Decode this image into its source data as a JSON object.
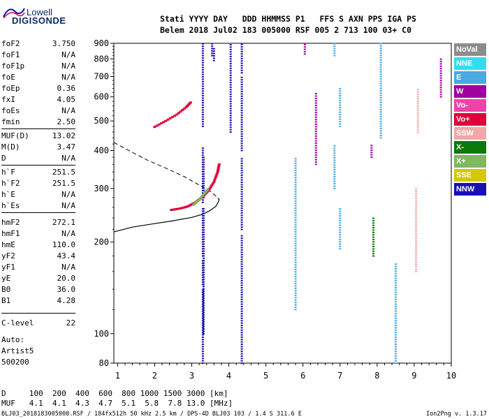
{
  "logo": {
    "line1": "Lowell",
    "line2": "DIGISONDE"
  },
  "header": {
    "line1": "Stati YYYY DAY   DDD HHMMSS P1   FFS S AXN PPS IGA PS",
    "line2": "Belem 2018 Jul02 183 005000 RSF 005 2 713 100 03+ C0"
  },
  "params": [
    {
      "name": "foF2",
      "value": "3.750"
    },
    {
      "name": "foF1",
      "value": "N/A"
    },
    {
      "name": "foF1p",
      "value": "N/A"
    },
    {
      "name": "foE",
      "value": "N/A"
    },
    {
      "name": "foEp",
      "value": "0.36"
    },
    {
      "name": "fxI",
      "value": "4.05"
    },
    {
      "name": "foEs",
      "value": "N/A"
    },
    {
      "name": "fmin",
      "value": "2.50"
    },
    {
      "name": "MUF(D)",
      "value": "13.02"
    },
    {
      "name": "M(D)",
      "value": "3.47"
    },
    {
      "name": "D",
      "value": "N/A"
    },
    {
      "name": "h`F",
      "value": "251.5"
    },
    {
      "name": "h`F2",
      "value": "251.5"
    },
    {
      "name": "h`E",
      "value": "N/A"
    },
    {
      "name": "h`Es",
      "value": "N/A"
    },
    {
      "name": "hmF2",
      "value": "272.1"
    },
    {
      "name": "hmF1",
      "value": "N/A"
    },
    {
      "name": "hmE",
      "value": "110.0"
    },
    {
      "name": "yF2",
      "value": "43.4"
    },
    {
      "name": "yF1",
      "value": "N/A"
    },
    {
      "name": "yE",
      "value": "20.0"
    },
    {
      "name": "B0",
      "value": "36.0"
    },
    {
      "name": "B1",
      "value": "4.28"
    },
    {
      "name": "C-level",
      "value": "22"
    }
  ],
  "auto": {
    "line1": "Auto:",
    "line2": "Artist5",
    "line3": "500200"
  },
  "legend": [
    {
      "label": "NoVal",
      "color": "#8c8c8c"
    },
    {
      "label": "NNE",
      "color": "#33ddee"
    },
    {
      "label": "E",
      "color": "#49a9e0"
    },
    {
      "label": "W",
      "color": "#a000a0"
    },
    {
      "label": "Vo-",
      "color": "#ee44aa"
    },
    {
      "label": "Vo+",
      "color": "#e0003a"
    },
    {
      "label": "SSW",
      "color": "#f0a8a8"
    },
    {
      "label": "X-",
      "color": "#0a7a0a"
    },
    {
      "label": "X+",
      "color": "#80b860"
    },
    {
      "label": "SSE",
      "color": "#d4c800"
    },
    {
      "label": "NNW",
      "color": "#1a0fb4"
    }
  ],
  "muf_table": {
    "d_line": "D     100  200  400  600  800 1000 1500 3000 [km]",
    "muf_line": "MUF   4.1  4.1  4.3  4.7  5.1  5.8  7.8 13.0 [MHz]"
  },
  "footer": {
    "left": "BLJ03_2018183005000.RSF / 184fx512h 50 kHz 2.5 km / DPS-4D BLJ03 103 / 1.4 S 311.6 E",
    "right": "Ion2Png v. 1.3.17"
  },
  "chart_data": {
    "type": "scatter",
    "xlim": [
      0.9,
      10
    ],
    "ylim": [
      80,
      900
    ],
    "y_scale": "log",
    "x_ticks": [
      "1",
      "2",
      "3",
      "4",
      "5",
      "6",
      "7",
      "8",
      "9",
      "10"
    ],
    "y_ticks": [
      "80",
      "100",
      "200",
      "300",
      "400",
      "500",
      "600",
      "700",
      "800",
      "900"
    ],
    "grid": false,
    "profile_curve": [
      [
        0.9,
        216
      ],
      [
        1.4,
        224
      ],
      [
        2.0,
        230
      ],
      [
        2.5,
        235
      ],
      [
        3.0,
        241
      ],
      [
        3.3,
        247
      ],
      [
        3.5,
        254
      ],
      [
        3.65,
        262
      ],
      [
        3.72,
        271
      ],
      [
        3.74,
        276
      ],
      [
        3.7,
        279
      ]
    ],
    "dashed_curve": [
      [
        0.9,
        425
      ],
      [
        1.3,
        400
      ],
      [
        1.8,
        372
      ],
      [
        2.3,
        350
      ],
      [
        2.8,
        328
      ],
      [
        3.2,
        308
      ],
      [
        3.5,
        294
      ],
      [
        3.7,
        280
      ]
    ],
    "traces": [
      {
        "color": "#1a0fb4",
        "x": 3.3,
        "y_ranges": [
          [
            80,
            140
          ],
          [
            145,
            175
          ],
          [
            180,
            260
          ],
          [
            270,
            410
          ],
          [
            480,
            900
          ]
        ]
      },
      {
        "color": "#1a0fb4",
        "x": 3.32,
        "y_ranges": [
          [
            100,
            260
          ],
          [
            280,
            380
          ]
        ]
      },
      {
        "color": "#1a0fb4",
        "x": 4.35,
        "y_ranges": [
          [
            80,
            210
          ],
          [
            220,
            380
          ],
          [
            400,
            700
          ],
          [
            720,
            900
          ]
        ]
      },
      {
        "color": "#1a0fb4",
        "x": 4.05,
        "y_ranges": [
          [
            460,
            900
          ]
        ]
      },
      {
        "color": "#1a0fb4",
        "x": 3.55,
        "y_ranges": [
          [
            820,
            900
          ]
        ]
      },
      {
        "color": "#1a0fb4",
        "x": 3.6,
        "y_ranges": [
          [
            790,
            870
          ]
        ]
      },
      {
        "color": "#a000a0",
        "x": 6.35,
        "y_ranges": [
          [
            360,
            620
          ]
        ]
      },
      {
        "color": "#a000a0",
        "x": 6.05,
        "y_ranges": [
          [
            830,
            900
          ]
        ]
      },
      {
        "color": "#a000a0",
        "x": 9.72,
        "y_ranges": [
          [
            600,
            800
          ]
        ]
      },
      {
        "color": "#a000a0",
        "x": 7.85,
        "y_ranges": [
          [
            380,
            420
          ]
        ]
      },
      {
        "color": "#49a9e0",
        "x": 6.85,
        "y_ranges": [
          [
            300,
            420
          ]
        ]
      },
      {
        "color": "#49a9e0",
        "x": 7.0,
        "y_ranges": [
          [
            190,
            260
          ],
          [
            480,
            640
          ]
        ]
      },
      {
        "color": "#49a9e0",
        "x": 8.5,
        "y_ranges": [
          [
            80,
            170
          ]
        ]
      },
      {
        "color": "#49a9e0",
        "x": 8.1,
        "y_ranges": [
          [
            440,
            900
          ]
        ]
      },
      {
        "color": "#49a9e0",
        "x": 5.8,
        "y_ranges": [
          [
            120,
            380
          ]
        ]
      },
      {
        "color": "#49a9e0",
        "x": 6.85,
        "y_ranges": [
          [
            820,
            900
          ]
        ]
      },
      {
        "color": "#f0a8a8",
        "x": 9.05,
        "y_ranges": [
          [
            160,
            300
          ]
        ]
      },
      {
        "color": "#f0a8a8",
        "x": 9.1,
        "y_ranges": [
          [
            460,
            640
          ]
        ]
      },
      {
        "color": "#0a7a0a",
        "x": 7.9,
        "y_ranges": [
          [
            180,
            240
          ]
        ]
      }
    ],
    "red_trace": [
      [
        2.45,
        255
      ],
      [
        2.7,
        258
      ],
      [
        2.9,
        262
      ],
      [
        3.1,
        270
      ],
      [
        3.3,
        282
      ],
      [
        3.45,
        295
      ],
      [
        3.6,
        315
      ],
      [
        3.7,
        340
      ],
      [
        3.75,
        365
      ]
    ],
    "green_trace": [
      [
        3.05,
        265
      ],
      [
        3.2,
        275
      ],
      [
        3.35,
        290
      ],
      [
        3.45,
        300
      ]
    ],
    "upper_red_trace": [
      [
        2.0,
        478
      ],
      [
        2.3,
        500
      ],
      [
        2.6,
        525
      ],
      [
        2.85,
        555
      ],
      [
        3.0,
        580
      ]
    ]
  }
}
